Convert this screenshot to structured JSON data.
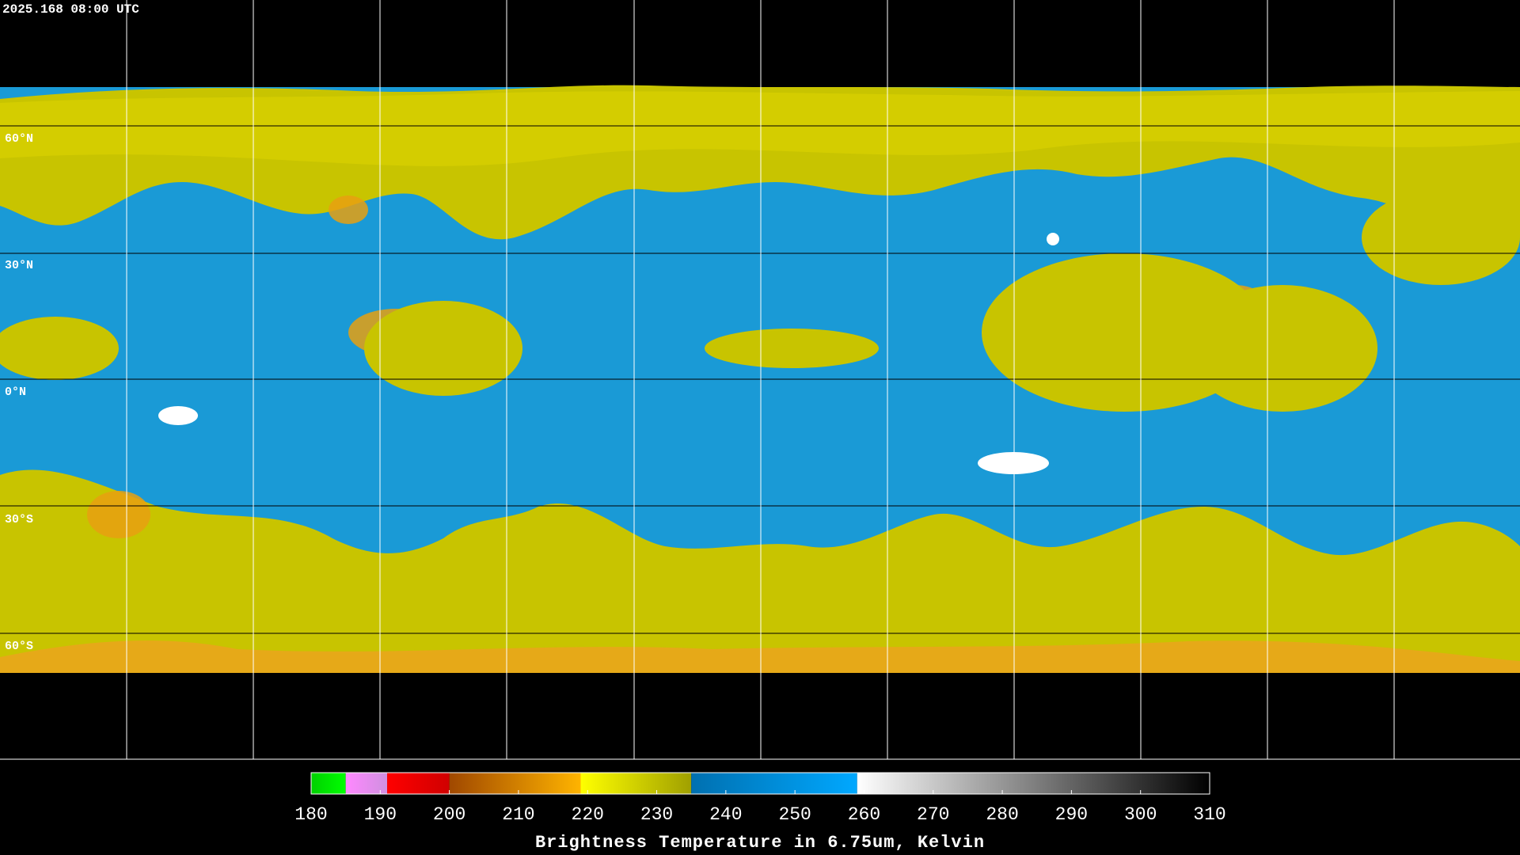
{
  "header": {
    "timestamp": "2025.168 08:00 UTC"
  },
  "map": {
    "lat_labels": [
      "60°N",
      "30°N",
      "0°N",
      "30°S",
      "60°S"
    ]
  },
  "colorbar": {
    "title": "Brightness Temperature in 6.75um, Kelvin",
    "lim": [
      180,
      310
    ],
    "ticks": [
      180,
      190,
      200,
      210,
      220,
      230,
      240,
      250,
      260,
      270,
      280,
      290,
      300,
      310
    ],
    "segments": [
      {
        "from": 180,
        "to": 185,
        "colors": [
          "#00d000",
          "#00ff00"
        ]
      },
      {
        "from": 185,
        "to": 191,
        "colors": [
          "#ff88ff",
          "#d090e0"
        ]
      },
      {
        "from": 191,
        "to": 200,
        "colors": [
          "#ff0000",
          "#d00000"
        ]
      },
      {
        "from": 200,
        "to": 219,
        "colors": [
          "#a04800",
          "#ffb400"
        ]
      },
      {
        "from": 219,
        "to": 235,
        "colors": [
          "#ffff00",
          "#a0a000"
        ]
      },
      {
        "from": 235,
        "to": 259,
        "colors": [
          "#0070b0",
          "#00a8ff"
        ]
      },
      {
        "from": 259,
        "to": 310,
        "colors": [
          "#ffffff",
          "#000000"
        ]
      }
    ]
  }
}
